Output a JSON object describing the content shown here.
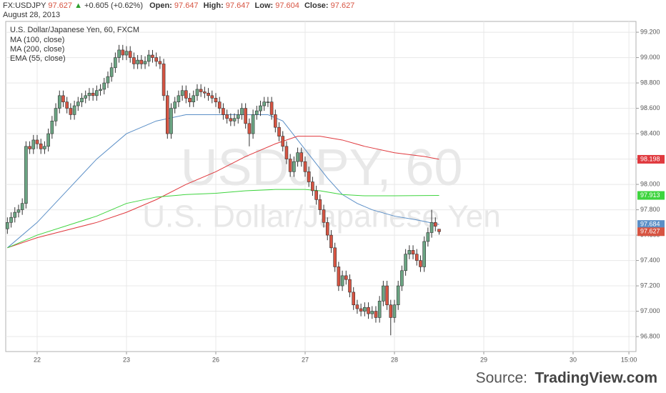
{
  "chart_data": {
    "type": "candlestick",
    "title": "U.S. Dollar/Japanese Yen, 60, FXCM",
    "header": {
      "symbol": "FX:USDJPY",
      "price": 97.627,
      "arrow": "▲",
      "change": "+0.605 (+0.62%)",
      "open_label": "Open:",
      "open": 97.647,
      "high_label": "High:",
      "high": 97.647,
      "low_label": "Low:",
      "low": 97.604,
      "close_label": "Close:",
      "close": 97.627,
      "date": "August 28, 2013"
    },
    "watermark": {
      "symbol": "USDJPY, 60",
      "name": "U.S. Dollar/Japanese Yen"
    },
    "source": {
      "label": "Source:",
      "site": "TradingView.com"
    },
    "up_color": "#6ba583",
    "down_color": "#d75442",
    "x": [
      -8,
      -7,
      -6,
      -5,
      -4,
      -3,
      -2,
      -1,
      0,
      1,
      2,
      3,
      4,
      5,
      6,
      7,
      8,
      9,
      10,
      11,
      12,
      13,
      14,
      15,
      16,
      17,
      18,
      19,
      20,
      21,
      22,
      23,
      24,
      25,
      26,
      27,
      28,
      29,
      30,
      31,
      32,
      33,
      34,
      35,
      36,
      37,
      38,
      39,
      40,
      41,
      42,
      43,
      44,
      45,
      46,
      47,
      48,
      49,
      50,
      51,
      52,
      53,
      54,
      55,
      56,
      57,
      58,
      59,
      60,
      61,
      62,
      63,
      64,
      65,
      66,
      67,
      68,
      69,
      70,
      71,
      72,
      73,
      74,
      75,
      76,
      77,
      78,
      79,
      80,
      81,
      82,
      83,
      84,
      85,
      86,
      87,
      88,
      89,
      90,
      91,
      92,
      93,
      94,
      95,
      96,
      97,
      98,
      99,
      100,
      101,
      102,
      103,
      104,
      105,
      106,
      107,
      108
    ],
    "open": [
      97.65,
      97.7,
      97.74,
      97.78,
      97.8,
      97.85,
      98.3,
      98.28,
      98.35,
      98.32,
      98.28,
      98.3,
      98.4,
      98.5,
      98.6,
      98.7,
      98.65,
      98.6,
      98.55,
      98.62,
      98.65,
      98.68,
      98.7,
      98.72,
      98.7,
      98.74,
      98.75,
      98.8,
      98.85,
      98.92,
      99.0,
      99.06,
      99.02,
      99.05,
      99.0,
      98.95,
      98.98,
      98.95,
      98.97,
      99.02,
      99.0,
      98.97,
      98.95,
      98.7,
      98.4,
      98.6,
      98.65,
      98.7,
      98.74,
      98.68,
      98.65,
      98.7,
      98.75,
      98.73,
      98.72,
      98.7,
      98.68,
      98.65,
      98.6,
      98.55,
      98.52,
      98.5,
      98.52,
      98.55,
      98.6,
      98.48,
      98.4,
      98.55,
      98.58,
      98.62,
      98.65,
      98.65,
      98.55,
      98.45,
      98.38,
      98.3,
      98.2,
      98.1,
      98.18,
      98.25,
      98.18,
      98.1,
      98.02,
      97.95,
      97.88,
      97.8,
      97.7,
      97.6,
      97.5,
      97.35,
      97.2,
      97.28,
      97.25,
      97.15,
      97.05,
      97.02,
      97.0,
      97.03,
      96.98,
      97.0,
      96.95,
      97.08,
      97.2,
      97.05,
      96.95,
      97.05,
      97.2,
      97.32,
      97.45,
      97.48,
      97.45,
      97.4,
      97.35,
      97.55,
      97.62,
      97.7,
      97.647
    ],
    "high": [
      97.74,
      97.78,
      97.82,
      97.84,
      97.89,
      98.34,
      98.34,
      98.39,
      98.39,
      98.36,
      98.34,
      98.44,
      98.54,
      98.64,
      98.74,
      98.74,
      98.69,
      98.64,
      98.66,
      98.69,
      98.72,
      98.74,
      98.76,
      98.76,
      98.78,
      98.79,
      98.84,
      98.89,
      98.96,
      99.04,
      99.1,
      99.1,
      99.09,
      99.09,
      99.04,
      99.02,
      99.02,
      99.01,
      99.06,
      99.06,
      99.04,
      99.01,
      98.99,
      98.74,
      98.64,
      98.69,
      98.74,
      98.78,
      98.78,
      98.72,
      98.74,
      98.79,
      98.79,
      98.77,
      98.76,
      98.74,
      98.72,
      98.69,
      98.64,
      98.59,
      98.56,
      98.56,
      98.59,
      98.64,
      98.64,
      98.52,
      98.59,
      98.62,
      98.66,
      98.69,
      98.69,
      98.69,
      98.59,
      98.49,
      98.42,
      98.34,
      98.24,
      98.22,
      98.29,
      98.29,
      98.22,
      98.14,
      98.06,
      97.99,
      97.92,
      97.84,
      97.74,
      97.64,
      97.54,
      97.39,
      97.32,
      97.32,
      97.29,
      97.19,
      97.09,
      97.06,
      97.07,
      97.07,
      97.04,
      97.04,
      97.12,
      97.24,
      97.24,
      97.09,
      97.09,
      97.24,
      97.36,
      97.49,
      97.52,
      97.52,
      97.49,
      97.44,
      97.59,
      97.66,
      97.8,
      97.74,
      97.647
    ],
    "low": [
      97.61,
      97.66,
      97.7,
      97.74,
      97.76,
      97.81,
      98.24,
      98.24,
      98.28,
      98.24,
      98.24,
      98.26,
      98.36,
      98.46,
      98.56,
      98.61,
      98.56,
      98.51,
      98.51,
      98.58,
      98.61,
      98.64,
      98.66,
      98.66,
      98.66,
      98.7,
      98.71,
      98.76,
      98.81,
      98.88,
      98.96,
      98.98,
      98.98,
      98.96,
      98.91,
      98.91,
      98.91,
      98.91,
      98.93,
      98.96,
      98.93,
      98.91,
      98.66,
      98.36,
      98.36,
      98.56,
      98.61,
      98.66,
      98.64,
      98.61,
      98.61,
      98.66,
      98.69,
      98.68,
      98.66,
      98.64,
      98.61,
      98.56,
      98.51,
      98.48,
      98.46,
      98.46,
      98.48,
      98.51,
      98.44,
      98.3,
      98.36,
      98.51,
      98.54,
      98.58,
      98.61,
      98.51,
      98.41,
      98.34,
      98.26,
      98.16,
      98.06,
      98.06,
      98.14,
      98.14,
      98.06,
      97.98,
      97.91,
      97.84,
      97.76,
      97.66,
      97.56,
      97.46,
      97.31,
      97.16,
      97.16,
      97.21,
      97.11,
      97.01,
      96.98,
      96.96,
      96.96,
      96.94,
      96.94,
      96.91,
      96.91,
      97.04,
      97.01,
      96.81,
      96.91,
      97.01,
      97.16,
      97.28,
      97.41,
      97.41,
      97.36,
      97.31,
      97.31,
      97.51,
      97.58,
      97.63,
      97.604
    ],
    "close": [
      97.7,
      97.74,
      97.78,
      97.8,
      97.85,
      98.3,
      98.28,
      98.35,
      98.32,
      98.28,
      98.3,
      98.4,
      98.5,
      98.6,
      98.7,
      98.65,
      98.6,
      98.55,
      98.62,
      98.65,
      98.68,
      98.7,
      98.72,
      98.7,
      98.74,
      98.75,
      98.8,
      98.85,
      98.92,
      99.0,
      99.06,
      99.02,
      99.05,
      99.0,
      98.95,
      98.98,
      98.95,
      98.97,
      99.02,
      99.0,
      98.97,
      98.95,
      98.7,
      98.4,
      98.6,
      98.65,
      98.7,
      98.74,
      98.68,
      98.65,
      98.7,
      98.75,
      98.73,
      98.72,
      98.7,
      98.68,
      98.65,
      98.6,
      98.55,
      98.52,
      98.5,
      98.52,
      98.55,
      98.6,
      98.48,
      98.4,
      98.55,
      98.58,
      98.62,
      98.65,
      98.65,
      98.55,
      98.45,
      98.38,
      98.3,
      98.2,
      98.1,
      98.18,
      98.25,
      98.18,
      98.1,
      98.02,
      97.95,
      97.88,
      97.8,
      97.7,
      97.6,
      97.5,
      97.35,
      97.2,
      97.28,
      97.25,
      97.15,
      97.05,
      97.02,
      97.0,
      97.03,
      96.98,
      97.0,
      96.95,
      97.08,
      97.2,
      97.05,
      96.95,
      97.05,
      97.2,
      97.32,
      97.45,
      97.48,
      97.45,
      97.4,
      97.35,
      97.55,
      97.62,
      97.7,
      97.67,
      97.627
    ],
    "series": [
      {
        "name": "MA (100, close)",
        "color": "#5b8fc7",
        "x": [
          -8,
          0,
          8,
          16,
          24,
          32,
          40,
          48,
          56,
          62,
          66,
          70,
          74,
          78,
          82,
          86,
          90,
          96,
          102,
          108
        ],
        "values": [
          97.5,
          97.7,
          97.95,
          98.2,
          98.4,
          98.5,
          98.55,
          98.55,
          98.55,
          98.55,
          98.5,
          98.35,
          98.2,
          98.05,
          97.92,
          97.85,
          97.8,
          97.75,
          97.72,
          97.684
        ]
      },
      {
        "name": "MA (200, close)",
        "color": "#e0393e",
        "x": [
          -8,
          0,
          16,
          24,
          32,
          40,
          48,
          56,
          64,
          70,
          76,
          82,
          88,
          96,
          104,
          108
        ],
        "values": [
          97.5,
          97.58,
          97.7,
          97.78,
          97.88,
          98.0,
          98.1,
          98.22,
          98.32,
          98.38,
          98.38,
          98.35,
          98.3,
          98.25,
          98.22,
          98.198
        ]
      },
      {
        "name": "EMA (55, close)",
        "color": "#3ed43e",
        "x": [
          -8,
          0,
          16,
          24,
          32,
          40,
          48,
          56,
          64,
          72,
          76,
          82,
          88,
          96,
          108
        ],
        "values": [
          97.5,
          97.6,
          97.75,
          97.85,
          97.9,
          97.92,
          97.93,
          97.95,
          97.96,
          97.96,
          97.95,
          97.92,
          97.91,
          97.91,
          97.913
        ]
      }
    ],
    "xlim": [
      -8.45,
      160.9
    ],
    "xticks": [
      {
        "value": 0,
        "label": "22"
      },
      {
        "value": 24,
        "label": "23"
      },
      {
        "value": 48,
        "label": "26"
      },
      {
        "value": 72,
        "label": "27"
      },
      {
        "value": 96,
        "label": "28"
      },
      {
        "value": 120,
        "label": "29"
      },
      {
        "value": 144,
        "label": "30"
      },
      {
        "value": 159,
        "label": "15:00"
      }
    ],
    "ylim": [
      96.682,
      99.285
    ],
    "yticks": [
      {
        "value": 96.8,
        "label": "96.800"
      },
      {
        "value": 97.0,
        "label": "97.000"
      },
      {
        "value": 97.2,
        "label": "97.200"
      },
      {
        "value": 97.4,
        "label": "97.400"
      },
      {
        "value": 97.6,
        "label": "97.600"
      },
      {
        "value": 97.8,
        "label": "97.800"
      },
      {
        "value": 98.0,
        "label": "98.000"
      },
      {
        "value": 98.2,
        "label": "98.200"
      },
      {
        "value": 98.4,
        "label": "98.400"
      },
      {
        "value": 98.6,
        "label": "98.600"
      },
      {
        "value": 98.8,
        "label": "98.800"
      },
      {
        "value": 99.0,
        "label": "99.000"
      },
      {
        "value": 99.2,
        "label": "99.200"
      }
    ],
    "grid": true
  }
}
